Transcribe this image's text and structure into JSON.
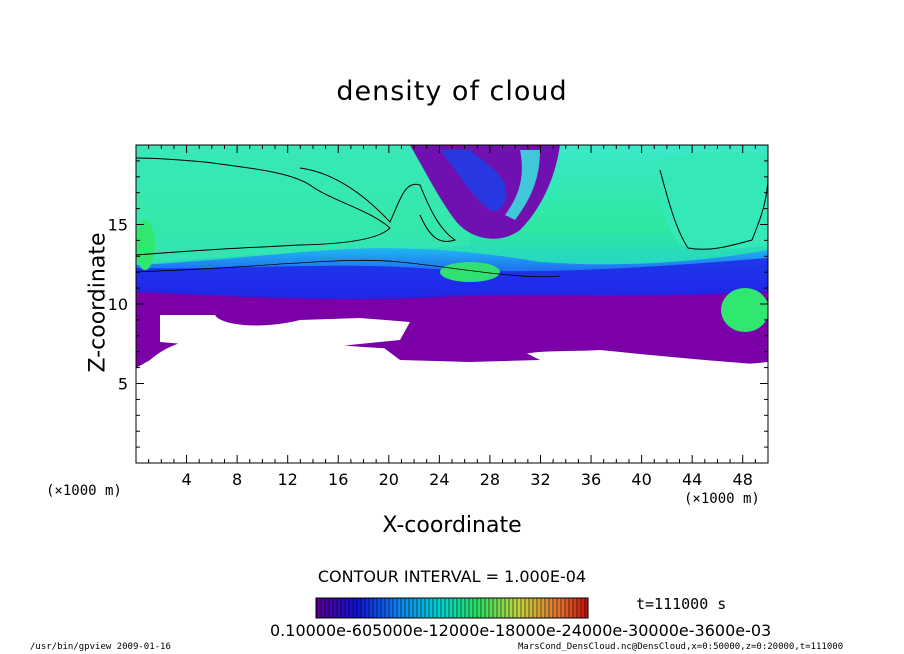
{
  "chart_data": {
    "type": "heatmap",
    "title": "density of cloud",
    "xlabel": "X-coordinate",
    "ylabel": "Z-coordinate",
    "x_unit": "(×1000 m)",
    "xlim": [
      0,
      50
    ],
    "ylim": [
      0,
      20
    ],
    "x_ticks": [
      "4",
      "8",
      "12",
      "16",
      "20",
      "24",
      "28",
      "32",
      "36",
      "40",
      "44",
      "48"
    ],
    "y_ticks": [
      "5",
      "10",
      "15"
    ],
    "contour_interval": "CONTOUR INTERVAL = 1.000E-04",
    "time_label": "t=111000 s",
    "colorbar_tick_text": "0.10000e-605000e-12000e-18000e-24000e-30000e-3600e-03",
    "colors": {
      "low": "#7b00a0",
      "mid_blue": "#1a2cf0",
      "cyan": "#00d8e8",
      "green": "#3af07a",
      "high": "#cc2200"
    }
  },
  "footer": {
    "left": "/usr/bin/gpview   2009-01-16",
    "right": "MarsCond_DensCloud.nc@DensCloud,x=0:50000,z=0:20000,t=111000"
  }
}
